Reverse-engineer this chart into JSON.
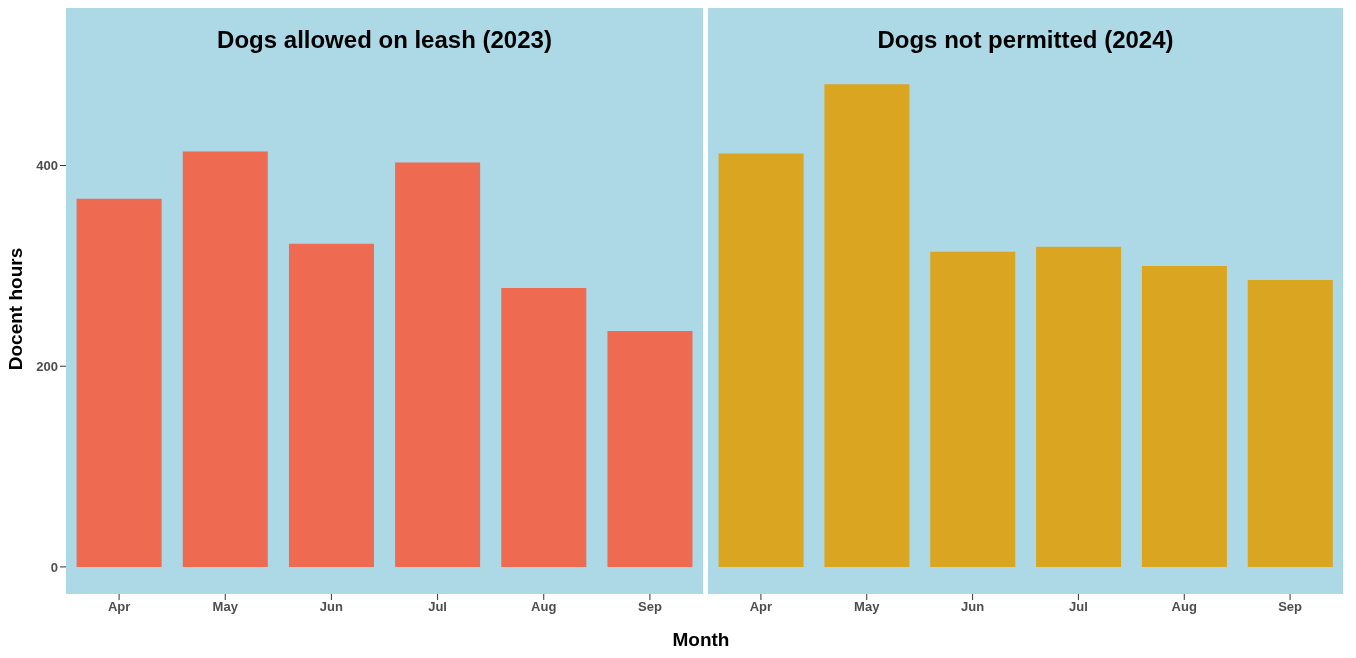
{
  "chart_data": [
    {
      "type": "bar",
      "title": "Dogs allowed on leash (2023)",
      "xlabel": "Month",
      "ylabel": "Docent hours",
      "categories": [
        "Apr",
        "May",
        "Jun",
        "Jul",
        "Aug",
        "Sep"
      ],
      "values": [
        367,
        414,
        322,
        403,
        278,
        235
      ],
      "color": "#ee6a50",
      "ylim": [
        -27,
        557
      ],
      "yticks": [
        0,
        200,
        400
      ]
    },
    {
      "type": "bar",
      "title": "Dogs not permitted (2024)",
      "categories": [
        "Apr",
        "May",
        "Jun",
        "Jul",
        "Aug",
        "Sep"
      ],
      "values": [
        412,
        481,
        314,
        319,
        300,
        286
      ],
      "color": "#daa520",
      "ylim": [
        -27,
        557
      ],
      "yticks": [
        0,
        200,
        400
      ],
      "tick_labels": "x"
    }
  ]
}
